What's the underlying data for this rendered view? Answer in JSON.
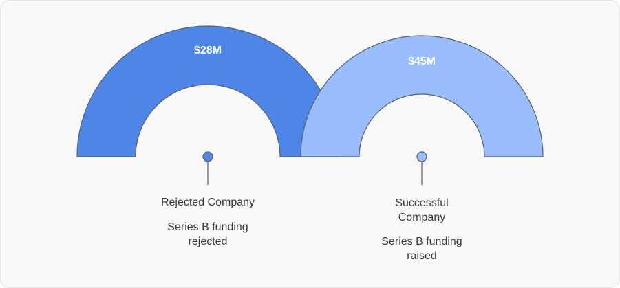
{
  "items": [
    {
      "value": "$28M",
      "title": "Rejected Company",
      "description": "Series B funding rejected"
    },
    {
      "value": "$45M",
      "title": "Successful Company",
      "description": "Series B funding raised"
    }
  ]
}
